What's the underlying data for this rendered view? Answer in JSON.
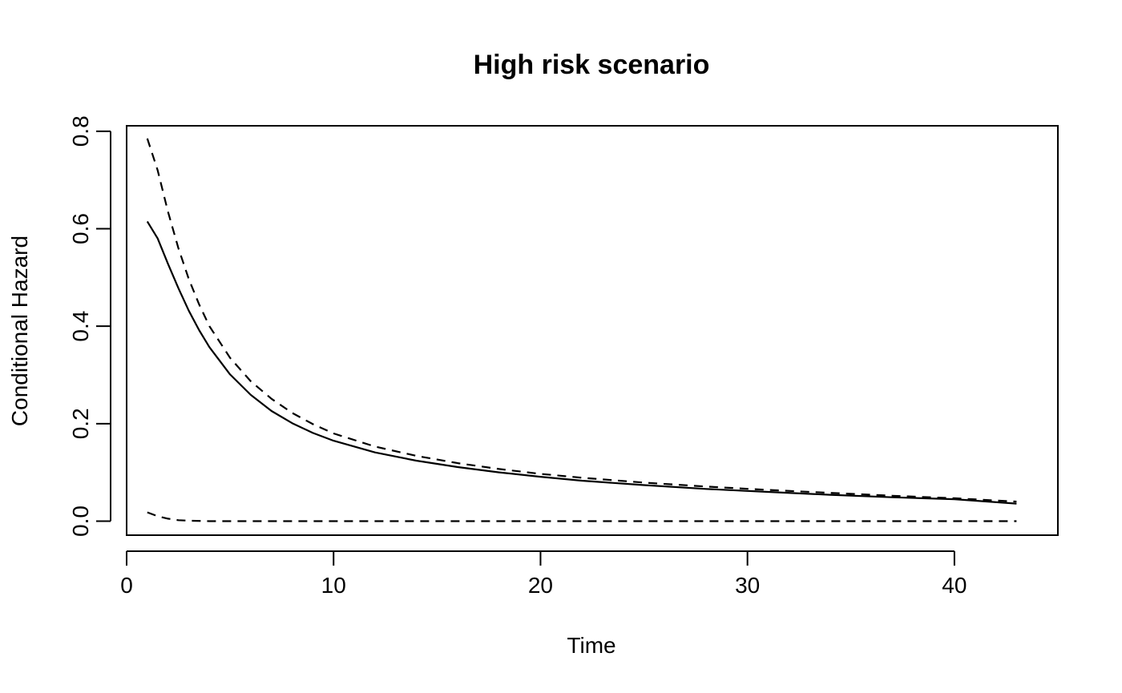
{
  "chart_data": {
    "type": "line",
    "title": "High risk scenario",
    "xlabel": "Time",
    "ylabel": "Conditional Hazard",
    "xlim": [
      0,
      45
    ],
    "ylim": [
      -0.0288,
      0.8112
    ],
    "x_ticks": [
      0,
      10,
      20,
      30,
      40
    ],
    "x_tick_labels": [
      "0",
      "10",
      "20",
      "30",
      "40"
    ],
    "y_ticks": [
      0.0,
      0.2,
      0.4,
      0.6,
      0.8
    ],
    "y_tick_labels": [
      "0.0",
      "0.2",
      "0.4",
      "0.6",
      "0.8"
    ],
    "grid": false,
    "legend": "none",
    "series": [
      {
        "line_style": "solid",
        "x": [
          1,
          1.5,
          2,
          2.5,
          3,
          3.5,
          4,
          5,
          6,
          7,
          8,
          9,
          10,
          12,
          14,
          16,
          18,
          20,
          22,
          25,
          28,
          31,
          34,
          37,
          40,
          43
        ],
        "y": [
          0.615,
          0.58,
          0.528,
          0.478,
          0.432,
          0.392,
          0.357,
          0.301,
          0.259,
          0.226,
          0.201,
          0.181,
          0.165,
          0.141,
          0.124,
          0.111,
          0.1,
          0.091,
          0.083,
          0.074,
          0.066,
          0.06,
          0.054,
          0.049,
          0.045,
          0.036
        ]
      },
      {
        "line_style": "dashed",
        "x": [
          1,
          1.5,
          2,
          2.5,
          3,
          3.5,
          4,
          5,
          6,
          7,
          8,
          9,
          10,
          12,
          14,
          16,
          18,
          20,
          22,
          25,
          28,
          31,
          34,
          37,
          40,
          43
        ],
        "y": [
          0.785,
          0.72,
          0.635,
          0.56,
          0.497,
          0.445,
          0.4,
          0.335,
          0.287,
          0.251,
          0.222,
          0.199,
          0.18,
          0.153,
          0.134,
          0.119,
          0.107,
          0.097,
          0.089,
          0.079,
          0.071,
          0.064,
          0.058,
          0.052,
          0.047,
          0.04
        ]
      },
      {
        "line_style": "dashed",
        "x": [
          1,
          1.5,
          2,
          2.5,
          3,
          4,
          5,
          10,
          20,
          30,
          40,
          43
        ],
        "y": [
          0.018,
          0.01,
          0.005,
          0.002,
          0.001,
          0.0,
          0.0,
          0.0,
          0.0,
          0.0,
          0.0,
          0.0
        ]
      }
    ]
  }
}
